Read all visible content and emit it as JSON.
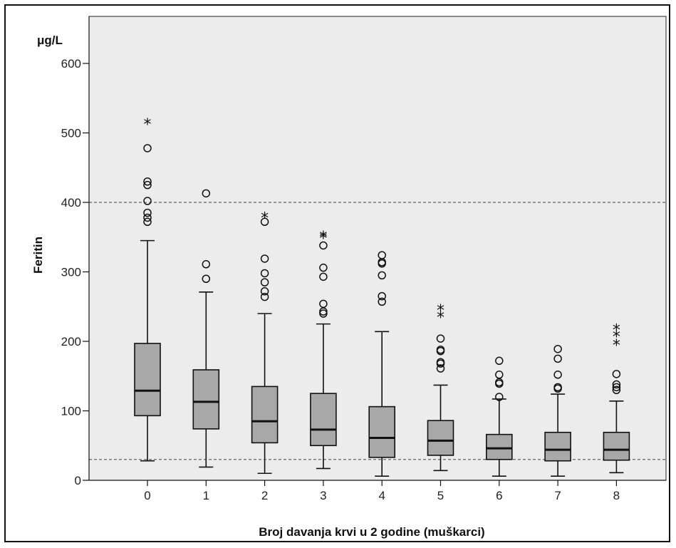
{
  "chart_data": {
    "type": "boxplot",
    "title": "",
    "unit": "μg/L",
    "ylabel": "Feritin",
    "xlabel": "Broj davanja krvi u 2 godine (muškarci)",
    "ylim": [
      0,
      650
    ],
    "yticks": [
      0,
      100,
      200,
      300,
      400,
      500,
      600
    ],
    "reference_lines": [
      400,
      30
    ],
    "grid": false,
    "categories": [
      "0",
      "1",
      "2",
      "3",
      "4",
      "5",
      "6",
      "7",
      "8"
    ],
    "boxes": [
      {
        "category": "0",
        "whisker_low": 28,
        "q1": 93,
        "median": 129,
        "q3": 197,
        "whisker_high": 345,
        "outliers": [
          478,
          430,
          425,
          402,
          385,
          378,
          372
        ],
        "extremes": [
          514
        ]
      },
      {
        "category": "1",
        "whisker_low": 19,
        "q1": 74,
        "median": 113,
        "q3": 159,
        "whisker_high": 271,
        "outliers": [
          413,
          311,
          290
        ],
        "extremes": []
      },
      {
        "category": "2",
        "whisker_low": 10,
        "q1": 54,
        "median": 85,
        "q3": 135,
        "whisker_high": 240,
        "outliers": [
          372,
          319,
          298,
          285,
          272,
          264
        ],
        "extremes": [
          379
        ]
      },
      {
        "category": "3",
        "whisker_low": 17,
        "q1": 50,
        "median": 73,
        "q3": 125,
        "whisker_high": 225,
        "outliers": [
          338,
          306,
          293,
          254,
          243,
          240
        ],
        "extremes": [
          352,
          350
        ]
      },
      {
        "category": "4",
        "whisker_low": 6,
        "q1": 33,
        "median": 61,
        "q3": 106,
        "whisker_high": 214,
        "outliers": [
          324,
          314,
          312,
          295,
          265,
          257
        ],
        "extremes": []
      },
      {
        "category": "5",
        "whisker_low": 14,
        "q1": 36,
        "median": 57,
        "q3": 86,
        "whisker_high": 137,
        "outliers": [
          204,
          188,
          186,
          170,
          168,
          161
        ],
        "extremes": [
          246,
          236
        ]
      },
      {
        "category": "6",
        "whisker_low": 6,
        "q1": 30,
        "median": 46,
        "q3": 66,
        "whisker_high": 117,
        "outliers": [
          172,
          152,
          141,
          139,
          120
        ],
        "extremes": []
      },
      {
        "category": "7",
        "whisker_low": 6,
        "q1": 28,
        "median": 44,
        "q3": 69,
        "whisker_high": 124,
        "outliers": [
          189,
          175,
          152,
          134,
          132
        ],
        "extremes": []
      },
      {
        "category": "8",
        "whisker_low": 11,
        "q1": 29,
        "median": 44,
        "q3": 69,
        "whisker_high": 114,
        "outliers": [
          153,
          138,
          134,
          130
        ],
        "extremes": [
          218,
          208,
          196
        ]
      }
    ],
    "colors": {
      "plot_bg": "#ececec",
      "box_fill": "#a8a8a8",
      "stroke": "#111111",
      "ref_line": "#666666"
    }
  }
}
